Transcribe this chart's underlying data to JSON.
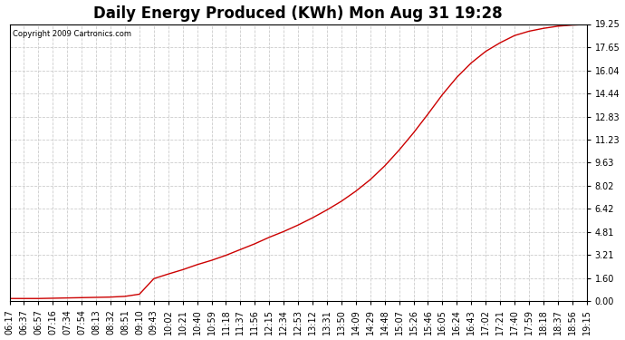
{
  "title": "Daily Energy Produced (KWh) Mon Aug 31 19:28",
  "copyright_text": "Copyright 2009 Cartronics.com",
  "y_ticks": [
    0.0,
    1.6,
    3.21,
    4.81,
    6.42,
    8.02,
    9.63,
    11.23,
    12.83,
    14.44,
    16.04,
    17.65,
    19.25
  ],
  "x_labels": [
    "06:17",
    "06:37",
    "06:57",
    "07:16",
    "07:34",
    "07:54",
    "08:13",
    "08:32",
    "08:51",
    "09:10",
    "09:43",
    "10:02",
    "10:21",
    "10:40",
    "10:59",
    "11:18",
    "11:37",
    "11:56",
    "12:15",
    "12:34",
    "12:53",
    "13:12",
    "13:31",
    "13:50",
    "14:09",
    "14:29",
    "14:48",
    "15:07",
    "15:26",
    "15:46",
    "16:05",
    "16:24",
    "16:43",
    "17:02",
    "17:21",
    "17:40",
    "17:59",
    "18:18",
    "18:37",
    "18:56",
    "19:15"
  ],
  "y_values": [
    0.2,
    0.2,
    0.2,
    0.22,
    0.24,
    0.26,
    0.28,
    0.3,
    0.35,
    0.5,
    1.58,
    1.9,
    2.2,
    2.55,
    2.85,
    3.2,
    3.6,
    4.0,
    4.45,
    4.85,
    5.3,
    5.8,
    6.35,
    6.95,
    7.65,
    8.45,
    9.4,
    10.5,
    11.7,
    13.0,
    14.35,
    15.55,
    16.55,
    17.35,
    17.95,
    18.45,
    18.75,
    18.95,
    19.1,
    19.18,
    19.22
  ],
  "line_color": "#cc0000",
  "background_color": "#ffffff",
  "plot_bg_color": "#ffffff",
  "grid_color": "#cccccc",
  "title_fontsize": 12,
  "tick_fontsize": 7,
  "y_max": 19.25,
  "y_min": 0.0
}
